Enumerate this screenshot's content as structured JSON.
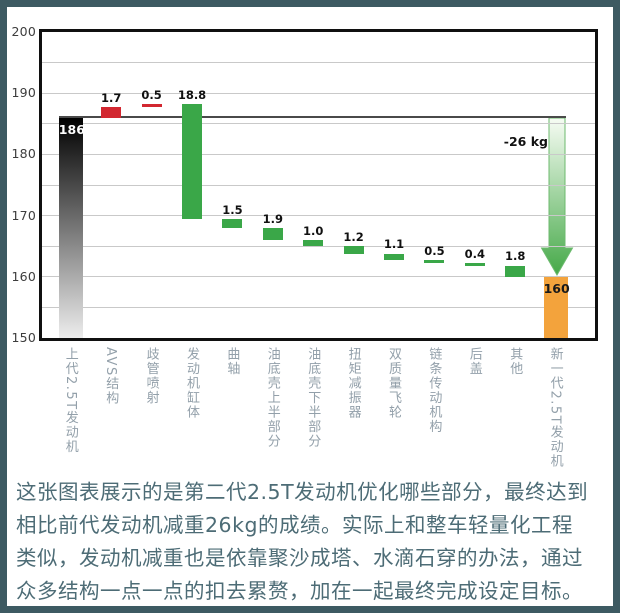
{
  "chart_data": {
    "type": "waterfall",
    "ylim": [
      150,
      200
    ],
    "yticks": [
      "200",
      "190",
      "180",
      "170",
      "160",
      "150"
    ],
    "grid_step": 5,
    "annotation": "-26 kg",
    "categories": [
      "上代2.5T发动机",
      "AVS结构",
      "歧管喷射",
      "发动机缸体",
      "曲轴",
      "油底壳上半部分",
      "油底壳下半部分",
      "扭矩减振器",
      "双质量飞轮",
      "链条传动机构",
      "后盖",
      "其他",
      "新一代2.5T发动机"
    ],
    "bars": [
      {
        "label": "上代2.5T发动机",
        "type": "total",
        "value": 186,
        "display": "186"
      },
      {
        "label": "AVS结构",
        "type": "increase",
        "value": 1.7,
        "display": "1.7"
      },
      {
        "label": "歧管喷射",
        "type": "increase",
        "value": 0.5,
        "display": "0.5"
      },
      {
        "label": "发动机缸体",
        "type": "decrease",
        "value": 18.8,
        "display": "18.8"
      },
      {
        "label": "曲轴",
        "type": "decrease",
        "value": 1.5,
        "display": "1.5"
      },
      {
        "label": "油底壳上半部分",
        "type": "decrease",
        "value": 1.9,
        "display": "1.9"
      },
      {
        "label": "油底壳下半部分",
        "type": "decrease",
        "value": 1.0,
        "display": "1.0"
      },
      {
        "label": "扭矩减振器",
        "type": "decrease",
        "value": 1.2,
        "display": "1.2"
      },
      {
        "label": "双质量飞轮",
        "type": "decrease",
        "value": 1.1,
        "display": "1.1"
      },
      {
        "label": "链条传动机构",
        "type": "decrease",
        "value": 0.5,
        "display": "0.5"
      },
      {
        "label": "后盖",
        "type": "decrease",
        "value": 0.4,
        "display": "0.4"
      },
      {
        "label": "其他",
        "type": "decrease",
        "value": 1.8,
        "display": "1.8"
      },
      {
        "label": "新一代2.5T发动机",
        "type": "total",
        "value": 160,
        "display": "160"
      }
    ]
  },
  "colors": {
    "increase": "#d22730",
    "decrease": "#3aa748",
    "start_bar_top": "#000000",
    "start_bar_bottom": "#ededed",
    "start_bar_label": "#ffffff",
    "end_bar": "#f3a33c",
    "end_bar_label": "#1a1a1a",
    "arrow_top": "#f7fcf4",
    "arrow_bottom": "#45a948",
    "arrow_outline": "#6cba6e",
    "page_border": "#3d5a62",
    "caption_text": "#4d6c76"
  },
  "caption": {
    "text": "这张图表展示的是第二代2.5T发动机优化哪些部分，最终达到\n相比前代发动机减重26kg的成绩。实际上和整车轻量化工程\n类似，发动机减重也是依靠聚沙成塔、水滴石穿的办法，通过\n众多结构一点一点的扣去累赘，加在一起最终完成设定目标。"
  }
}
